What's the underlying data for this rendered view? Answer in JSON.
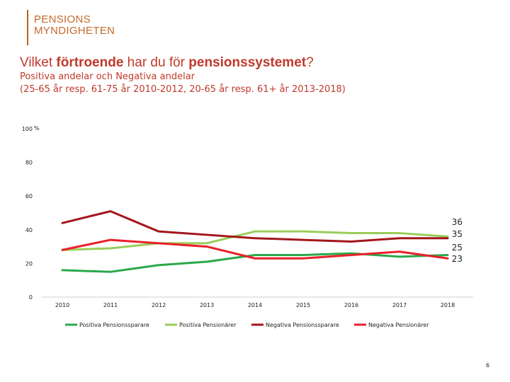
{
  "brand": {
    "line1": "PENSIONS",
    "line2": "MYNDIGHETEN"
  },
  "header": {
    "title_pre": "Vilket ",
    "title_bold1": "förtroende",
    "title_mid": " har du för ",
    "title_bold2": "pensionssystemet",
    "title_post": "?",
    "subtitle_line1": "Positiva andelar och Negativa andelar",
    "subtitle_line2": "(25-65 år resp. 61-75 år 2010-2012, 20-65 år resp. 61+ år 2013-2018)"
  },
  "page_number": "6",
  "chart_data": {
    "type": "line",
    "categories": [
      "2010",
      "2011",
      "2012",
      "2013",
      "2014",
      "2015",
      "2016",
      "2017",
      "2018"
    ],
    "y_unit": "%",
    "ylim": [
      0,
      100
    ],
    "yticks": [
      0,
      20,
      40,
      60,
      80,
      100
    ],
    "grid": false,
    "legend_position": "bottom",
    "series": [
      {
        "name": "Positiva Pensionssparare",
        "color": "#2aa84a",
        "values": [
          16,
          15,
          19,
          21,
          25,
          25,
          26,
          24,
          25
        ],
        "end_label": "25"
      },
      {
        "name": "Positiva Pensionärer",
        "color": "#9acd5a",
        "values": [
          28,
          29,
          32,
          32,
          39,
          39,
          38,
          38,
          36
        ],
        "end_label": "36"
      },
      {
        "name": "Negativa Pensionssparare",
        "color": "#a3161b",
        "values": [
          44,
          51,
          39,
          37,
          35,
          34,
          33,
          35,
          35
        ],
        "end_label": "35"
      },
      {
        "name": "Negativa Pensionärer",
        "color": "#e8202a",
        "values": [
          28,
          34,
          32,
          30,
          23,
          23,
          25,
          27,
          23
        ],
        "end_label": "23"
      }
    ]
  }
}
